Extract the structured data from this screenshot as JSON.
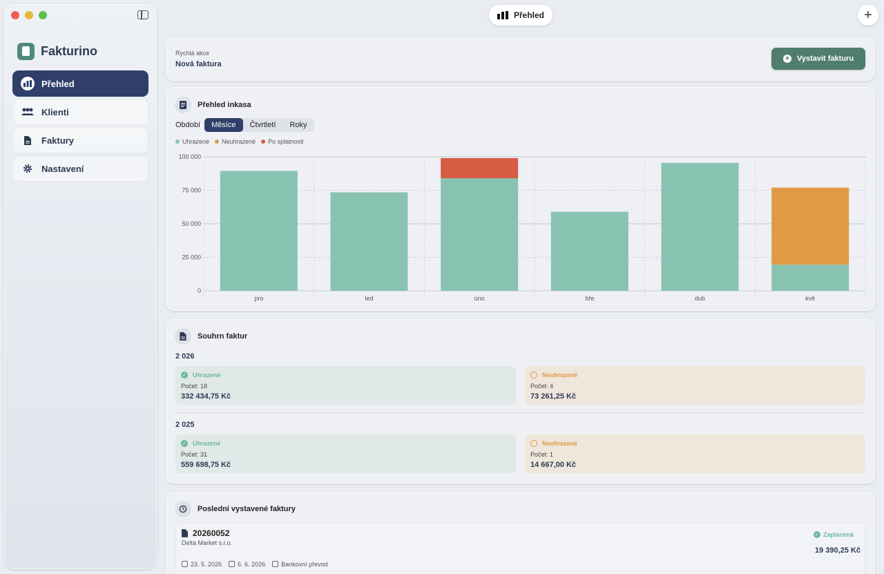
{
  "app": {
    "name": "Fakturino"
  },
  "sidebar": {
    "items": [
      {
        "label": "Přehled",
        "icon": "bar-chart-icon"
      },
      {
        "label": "Klienti",
        "icon": "people-icon"
      },
      {
        "label": "Faktury",
        "icon": "document-icon"
      },
      {
        "label": "Nastavení",
        "icon": "gear-icon"
      }
    ]
  },
  "topbar": {
    "title": "Přehled",
    "add_label": "+"
  },
  "quick": {
    "label": "Rychlá akce",
    "title": "Nová faktura",
    "button": "Vystavit fakturu"
  },
  "chart_card": {
    "title": "Přehled inkasa",
    "period_label": "Období",
    "periods": [
      "Měsíce",
      "Čtvrtletí",
      "Roky"
    ],
    "legend": [
      "Uhrazené",
      "Neuhrazené",
      "Po splatnosti"
    ]
  },
  "colors": {
    "paid": "#88c3b1",
    "unpaid": "#e09a45",
    "overdue": "#d65c44",
    "accent": "#2f3f6a",
    "button": "#4f7d6e"
  },
  "chart_data": {
    "type": "bar",
    "stacked": true,
    "categories": [
      "pro",
      "led",
      "úno",
      "bře",
      "dub",
      "kvě"
    ],
    "series": [
      {
        "name": "Uhrazené",
        "values": [
          89500,
          73500,
          84000,
          59000,
          95500,
          19500
        ]
      },
      {
        "name": "Neuhrazené",
        "values": [
          0,
          0,
          0,
          0,
          0,
          57500
        ]
      },
      {
        "name": "Po splatnosti",
        "values": [
          0,
          0,
          15000,
          0,
          0,
          0
        ]
      }
    ],
    "yticks": [
      "0",
      "25 000",
      "50 000",
      "75 000",
      "100 000"
    ],
    "ylim": [
      0,
      100000
    ]
  },
  "summary": {
    "title": "Souhrn faktur",
    "years": [
      {
        "year": "2 026",
        "paid": {
          "label": "Uhrazené",
          "count": "Počet: 18",
          "amount": "332 434,75 Kč"
        },
        "unpaid": {
          "label": "Neuhrazené",
          "count": "Počet: 4",
          "amount": "73 261,25 Kč"
        }
      },
      {
        "year": "2 025",
        "paid": {
          "label": "Uhrazené",
          "count": "Počet: 31",
          "amount": "559 698,75 Kč"
        },
        "unpaid": {
          "label": "Neuhrazené",
          "count": "Počet: 1",
          "amount": "14 667,00 Kč"
        }
      }
    ]
  },
  "recent": {
    "title": "Poslední vystavené faktury",
    "invoices": [
      {
        "number": "20260052",
        "client": "Delta Market s.r.o.",
        "issued": "23. 5. 2026",
        "due": "6. 6. 2026",
        "payment": "Bankovní převod",
        "status": "Zaplacená",
        "amount": "19 390,25 Kč"
      }
    ]
  }
}
